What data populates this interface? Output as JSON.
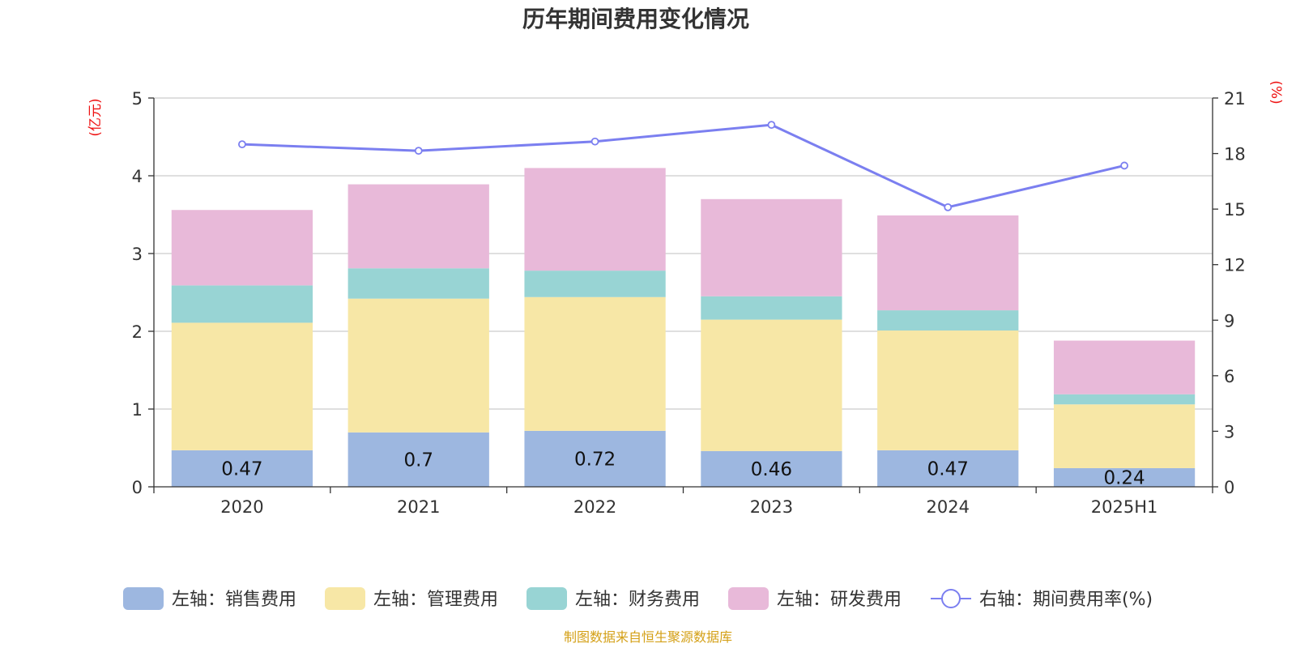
{
  "chart_data": {
    "type": "bar",
    "title": "历年期间费用变化情况",
    "categories": [
      "2020",
      "2021",
      "2022",
      "2023",
      "2024",
      "2025H1"
    ],
    "left_axis": {
      "unit_label": "(亿元)",
      "ylim": [
        0,
        5
      ],
      "ticks": [
        "0",
        "1",
        "2",
        "3",
        "4",
        "5"
      ]
    },
    "right_axis": {
      "unit_label": "(%)",
      "ylim": [
        0,
        21
      ],
      "ticks": [
        "0",
        "3",
        "6",
        "9",
        "12",
        "15",
        "18",
        "21"
      ]
    },
    "series": [
      {
        "name": "左轴：销售费用",
        "type": "stacked-bar",
        "axis": "left",
        "color": "#9db7e0",
        "values": [
          0.47,
          0.7,
          0.72,
          0.46,
          0.47,
          0.24
        ],
        "data_labels": [
          "0.47",
          "0.7",
          "0.72",
          "0.46",
          "0.47",
          "0.24"
        ]
      },
      {
        "name": "左轴：管理费用",
        "type": "stacked-bar",
        "axis": "left",
        "color": "#f7e7a6",
        "values": [
          1.64,
          1.72,
          1.72,
          1.69,
          1.54,
          0.82
        ]
      },
      {
        "name": "左轴：财务费用",
        "type": "stacked-bar",
        "axis": "left",
        "color": "#98d4d4",
        "values": [
          0.48,
          0.39,
          0.34,
          0.3,
          0.26,
          0.13
        ]
      },
      {
        "name": "左轴：研发费用",
        "type": "stacked-bar",
        "axis": "left",
        "color": "#e8b9d9",
        "values": [
          0.97,
          1.08,
          1.32,
          1.25,
          1.22,
          0.69
        ]
      },
      {
        "name": "右轴：期间费用率(%)",
        "type": "line",
        "axis": "right",
        "color": "#7b7ff0",
        "values": [
          18.5,
          18.15,
          18.65,
          19.55,
          15.1,
          17.35
        ]
      }
    ],
    "grid": true,
    "legend_position": "bottom"
  },
  "source_note": "制图数据来自恒生聚源数据库"
}
